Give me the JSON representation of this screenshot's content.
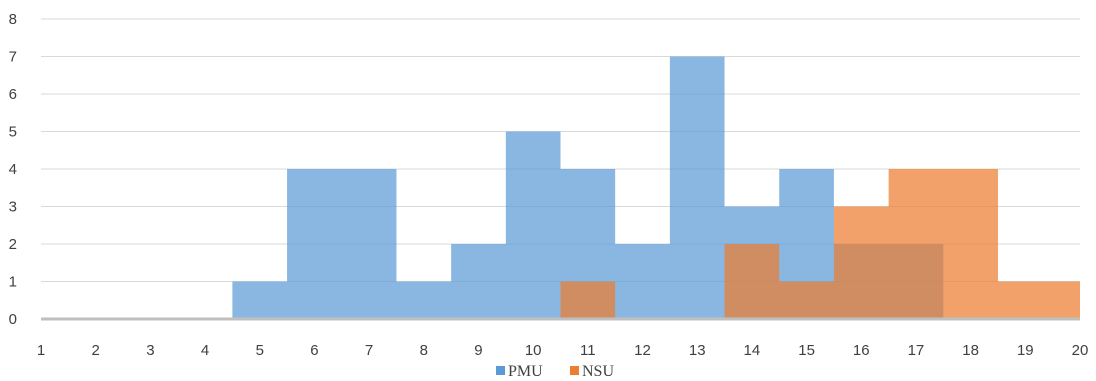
{
  "chart_data": {
    "type": "area",
    "step": true,
    "x": [
      1,
      2,
      3,
      4,
      5,
      6,
      7,
      8,
      9,
      10,
      11,
      12,
      13,
      14,
      15,
      16,
      17,
      18,
      19,
      20
    ],
    "series": [
      {
        "name": "PMU",
        "color": "#5b9bd5",
        "values": [
          0,
          0,
          0,
          0,
          1,
          4,
          4,
          1,
          2,
          5,
          4,
          2,
          7,
          3,
          4,
          2,
          2,
          0,
          0,
          0
        ]
      },
      {
        "name": "NSU",
        "color": "#ed7d31",
        "values": [
          0,
          0,
          0,
          0,
          0,
          0,
          0,
          0,
          0,
          0,
          1,
          0,
          0,
          2,
          1,
          3,
          4,
          4,
          1,
          1
        ]
      }
    ],
    "ylim": [
      0,
      8
    ],
    "yticks": [
      0,
      1,
      2,
      3,
      4,
      5,
      6,
      7,
      8
    ],
    "grid": true,
    "legend": "bottom"
  }
}
